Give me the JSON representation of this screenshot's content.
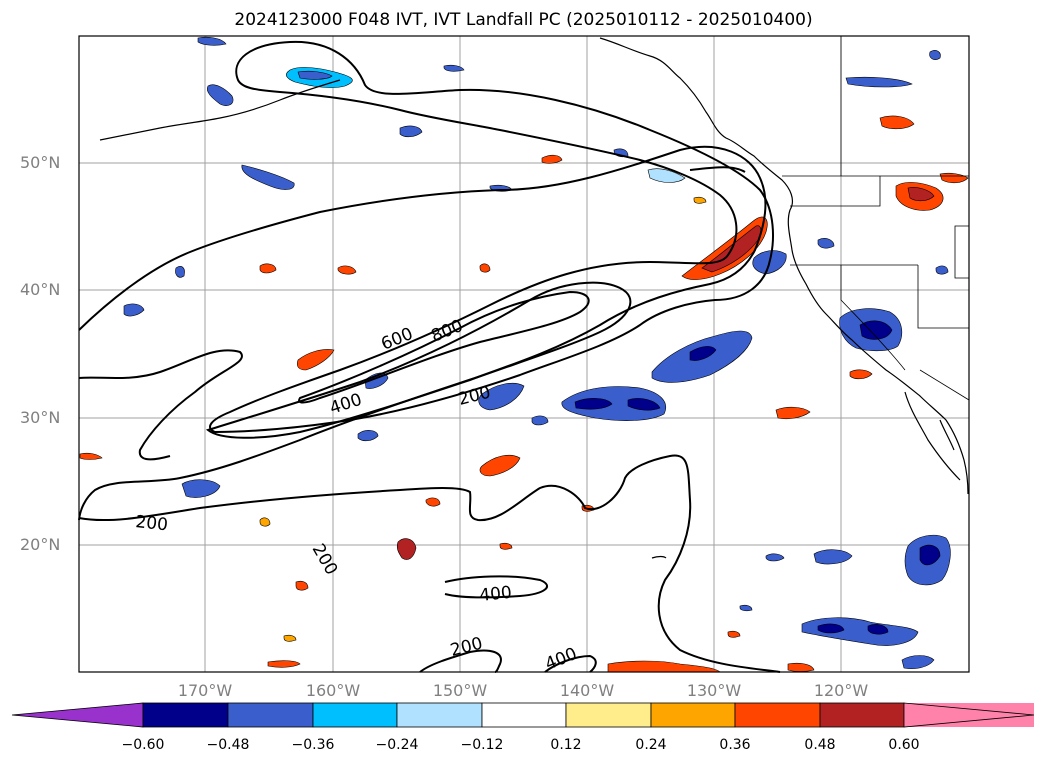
{
  "title": "2024123000 F048 IVT, IVT Landfall PC (2025010112 - 2025010400)",
  "map": {
    "lat_labels": [
      "50°N",
      "40°N",
      "30°N",
      "20°N"
    ],
    "lon_labels": [
      "170°W",
      "160°W",
      "150°W",
      "140°W",
      "130°W",
      "120°W"
    ],
    "contour_labels": [
      "200",
      "200",
      "400",
      "600",
      "800",
      "200",
      "400",
      "200",
      "400"
    ],
    "contour_levels": [
      200,
      400,
      600,
      800
    ]
  },
  "colorbar": {
    "ticks": [
      "−0.60",
      "−0.48",
      "−0.36",
      "−0.24",
      "−0.12",
      "0.12",
      "0.24",
      "0.36",
      "0.48",
      "0.60"
    ],
    "colors": [
      "#9932cc",
      "#00008b",
      "#3a5fcd",
      "#00bfff",
      "#b0e2ff",
      "#ffffff",
      "#ffec8b",
      "#ffa500",
      "#ff4500",
      "#b22222",
      "#ff82ab"
    ]
  }
}
